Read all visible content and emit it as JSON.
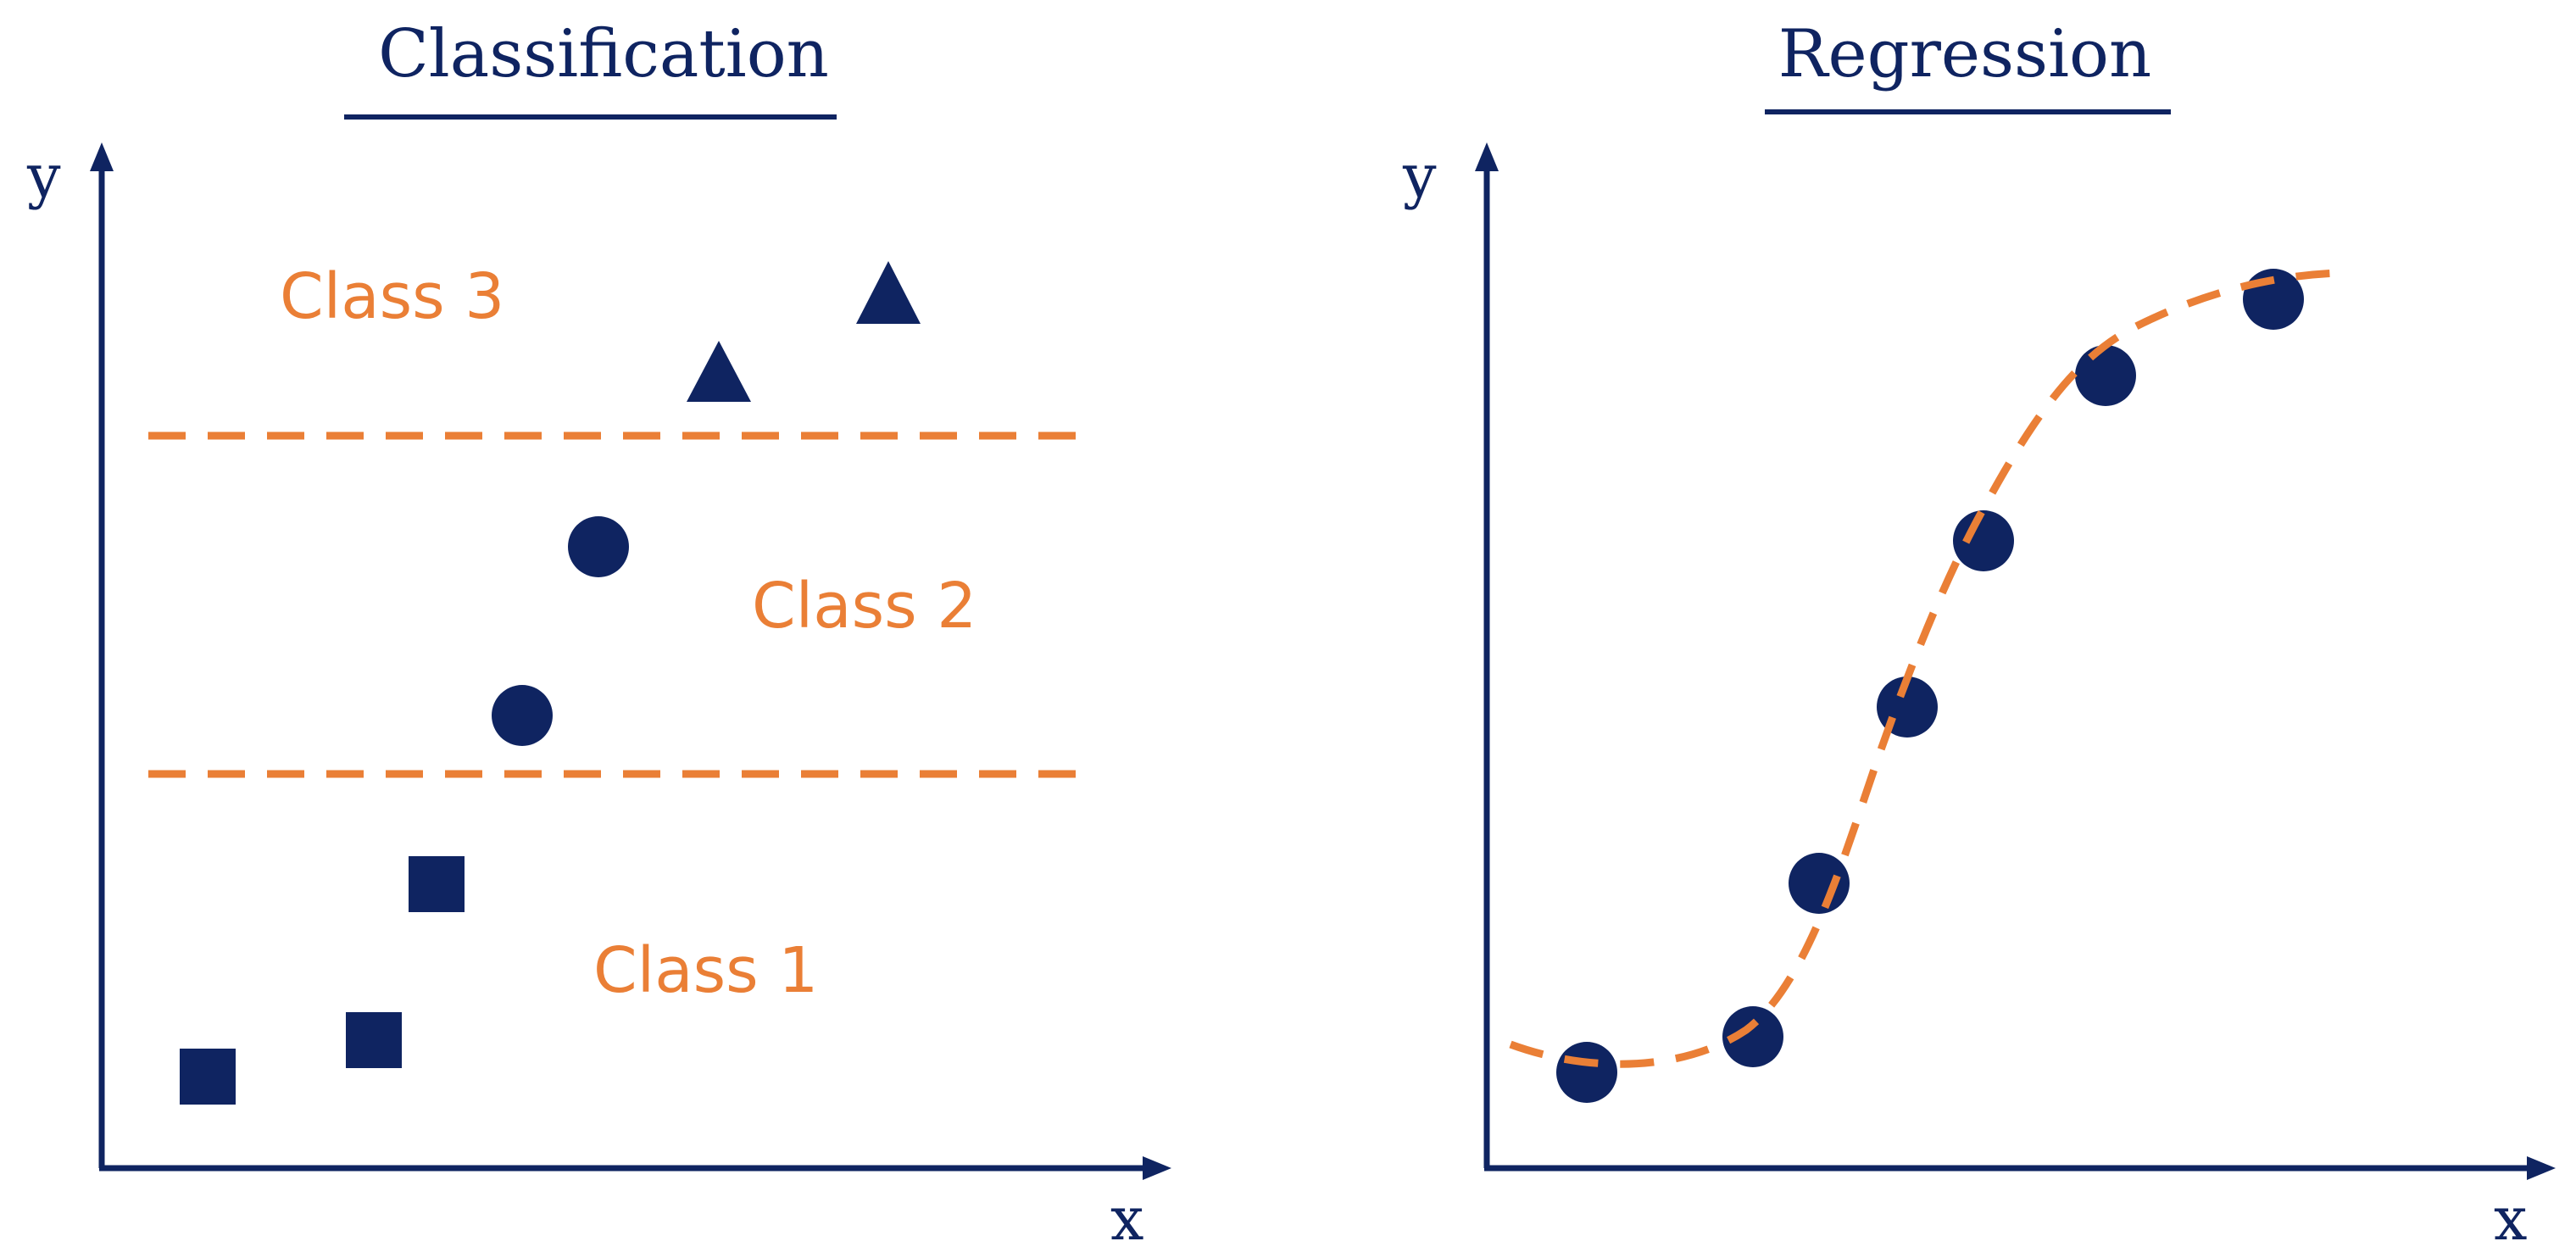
{
  "colors": {
    "navy": "#0f2461",
    "orange": "#ea7f36"
  },
  "classification": {
    "title": "Classification",
    "x_label": "x",
    "y_label": "y",
    "class_labels": [
      "Class 1",
      "Class 2",
      "Class 3"
    ]
  },
  "regression": {
    "title": "Regression",
    "x_label": "x",
    "y_label": "y"
  },
  "icons": {
    "class1_marker": "square-icon",
    "class2_marker": "circle-icon",
    "class3_marker": "triangle-icon",
    "regression_marker": "circle-icon"
  }
}
